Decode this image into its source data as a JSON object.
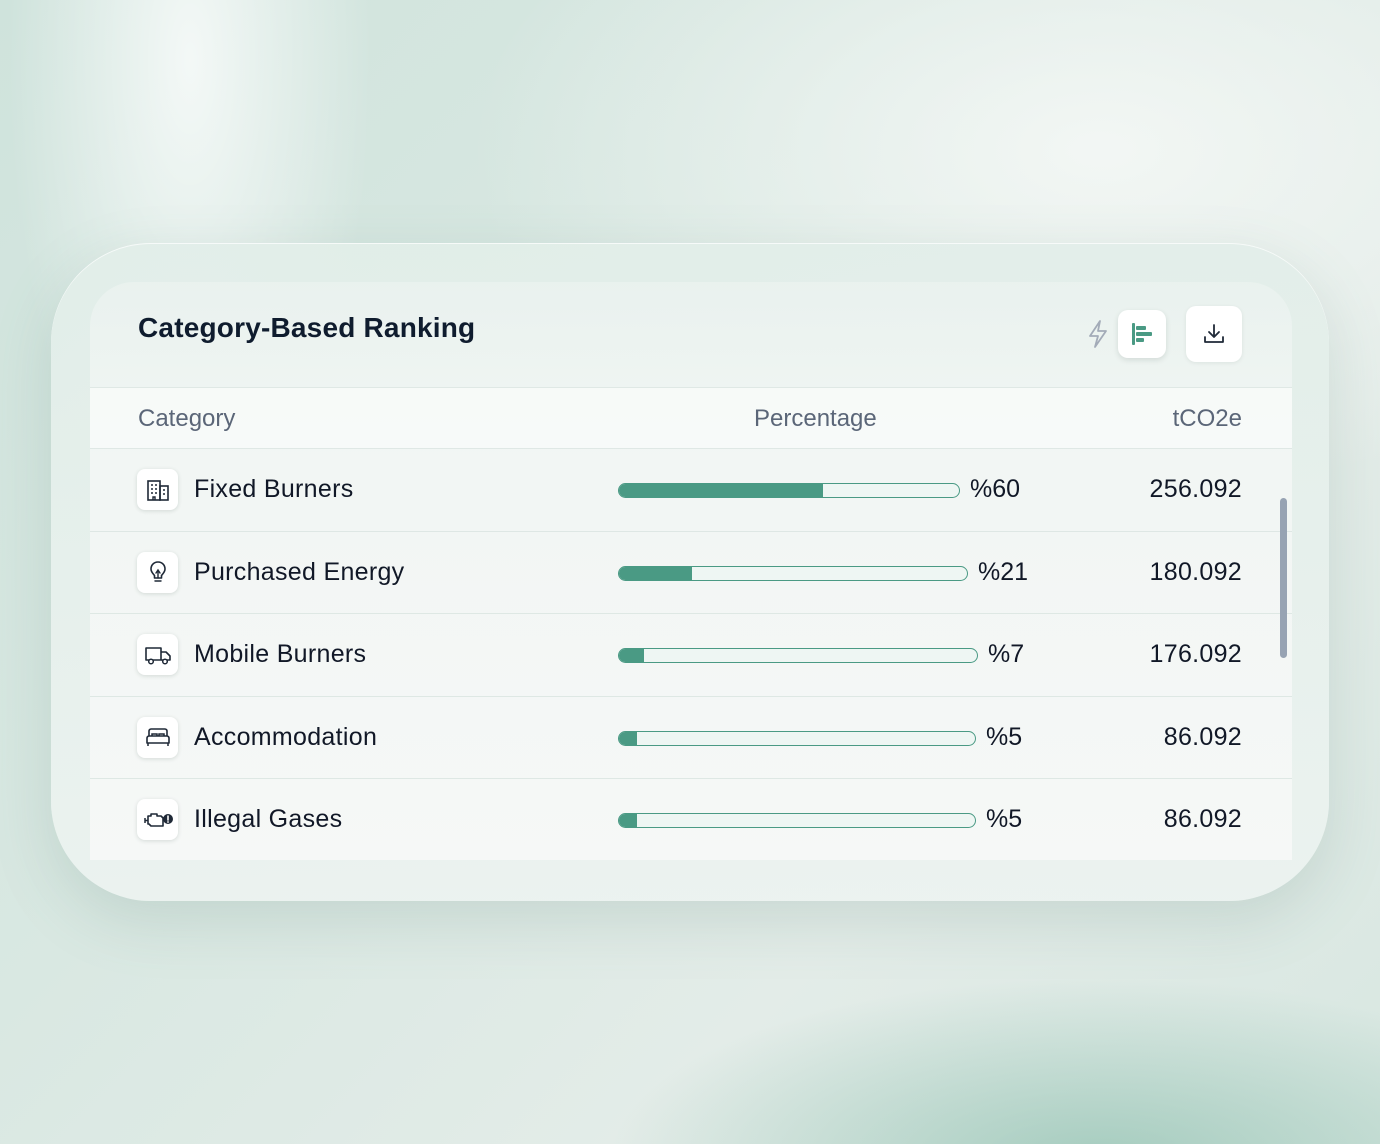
{
  "card": {
    "title": "Category-Based Ranking",
    "toolbar": {
      "flash_icon": "lightning-icon",
      "bar_chart_icon": "bar-chart-icon",
      "download_icon": "download-icon"
    }
  },
  "table": {
    "columns": {
      "category": "Category",
      "percentage": "Percentage",
      "tco2e": "tCO2e"
    },
    "rows": [
      {
        "icon": "building-icon",
        "label": "Fixed Burners",
        "percent_text": "%60",
        "percent": 60,
        "value": "256.092"
      },
      {
        "icon": "lightbulb-icon",
        "label": "Purchased Energy",
        "percent_text": "%21",
        "percent": 21,
        "value": "180.092"
      },
      {
        "icon": "truck-icon",
        "label": "Mobile Burners",
        "percent_text": "%7",
        "percent": 7,
        "value": "176.092"
      },
      {
        "icon": "bed-icon",
        "label": "Accommodation",
        "percent_text": "%5",
        "percent": 5,
        "value": "86.092"
      },
      {
        "icon": "engine-warning-icon",
        "label": "Illegal Gases",
        "percent_text": "%5",
        "percent": 5,
        "value": "86.092"
      }
    ]
  },
  "colors": {
    "accent": "#4a9a84",
    "bar_track": "#eef6f3",
    "text_primary": "#111827",
    "text_muted": "#5b6678"
  }
}
